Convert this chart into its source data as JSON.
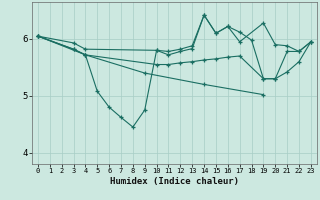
{
  "xlabel": "Humidex (Indice chaleur)",
  "ylabel": "",
  "background_color": "#cce8e0",
  "line_color": "#1a6e62",
  "xlim": [
    -0.5,
    23.5
  ],
  "ylim": [
    3.8,
    6.65
  ],
  "yticks": [
    4,
    5,
    6
  ],
  "xticks": [
    0,
    1,
    2,
    3,
    4,
    5,
    6,
    7,
    8,
    9,
    10,
    11,
    12,
    13,
    14,
    15,
    16,
    17,
    18,
    19,
    20,
    21,
    22,
    23
  ],
  "lines": [
    {
      "x": [
        0,
        3,
        4,
        10,
        11,
        12,
        13,
        14,
        15,
        16,
        17,
        19,
        20,
        21,
        22,
        23
      ],
      "y": [
        6.05,
        5.93,
        5.82,
        5.8,
        5.78,
        5.82,
        5.88,
        6.42,
        6.1,
        6.22,
        5.95,
        6.28,
        5.9,
        5.88,
        5.78,
        5.95
      ]
    },
    {
      "x": [
        0,
        3,
        4,
        10,
        11,
        12,
        13,
        14,
        15,
        16,
        17,
        19,
        20,
        21,
        22,
        23
      ],
      "y": [
        6.05,
        5.82,
        5.72,
        5.55,
        5.55,
        5.58,
        5.6,
        5.63,
        5.65,
        5.68,
        5.7,
        5.3,
        5.3,
        5.42,
        5.6,
        5.95
      ]
    },
    {
      "x": [
        0,
        3,
        4,
        5,
        6,
        7,
        8,
        9,
        10,
        11,
        12,
        13,
        14,
        15,
        16,
        17,
        18,
        19,
        20,
        21,
        22,
        23
      ],
      "y": [
        6.05,
        5.82,
        5.72,
        5.08,
        4.8,
        4.62,
        4.45,
        4.75,
        5.8,
        5.72,
        5.78,
        5.83,
        6.42,
        6.1,
        6.22,
        6.12,
        5.98,
        5.3,
        5.3,
        5.78,
        5.78,
        5.95
      ]
    },
    {
      "x": [
        0,
        4,
        9,
        14,
        19
      ],
      "y": [
        6.05,
        5.72,
        5.4,
        5.2,
        5.02
      ]
    }
  ]
}
